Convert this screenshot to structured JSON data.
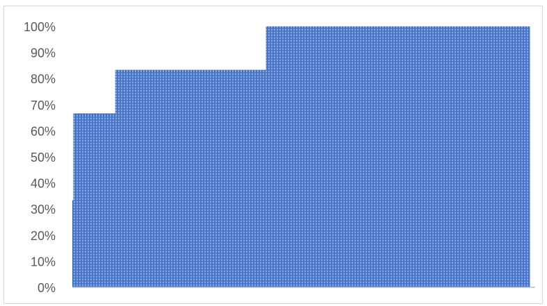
{
  "chart_data": {
    "type": "area",
    "title": "",
    "xlabel": "",
    "ylabel": "",
    "ylim": [
      0,
      1
    ],
    "y_tick_labels": [
      "0%",
      "10%",
      "20%",
      "30%",
      "40%",
      "50%",
      "60%",
      "70%",
      "80%",
      "90%",
      "100%"
    ],
    "grid": false,
    "legend": "none",
    "step": true,
    "x": [
      0,
      1,
      2,
      3,
      4,
      5,
      6,
      7,
      8,
      9,
      10,
      11,
      12,
      13,
      14,
      15,
      16,
      17,
      18,
      19
    ],
    "series": [
      {
        "values": [
          0.3333,
          0.6667,
          0.6667,
          0.6667,
          0.6667,
          0.8333,
          0.8333,
          0.8333,
          0.8333,
          0.8333,
          0.8333,
          0.8333,
          0.8333,
          1.0,
          1.0,
          1.0,
          1.0,
          1.0,
          1.0,
          1.0
        ],
        "widths": [
          1,
          10,
          10,
          10,
          10,
          18,
          18,
          18,
          18,
          18,
          18,
          18,
          18,
          36,
          36,
          36,
          36,
          36,
          36,
          36
        ],
        "color": "#4472C4",
        "fill_pattern": "grid"
      }
    ]
  }
}
